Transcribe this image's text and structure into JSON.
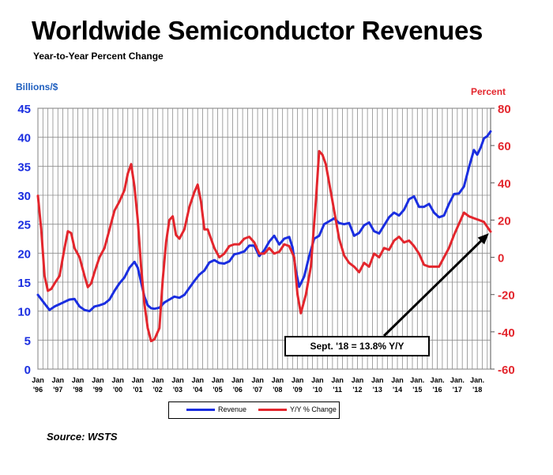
{
  "title": "Worldwide Semiconductor Revenues",
  "subtitle": "Year-to-Year Percent Change",
  "source": "Source: WSTS",
  "annotation": "Sept. '18 = 13.8% Y/Y",
  "colors": {
    "revenue": "#1a2ee0",
    "yy": "#e3262d",
    "left_axis": "#1a2ee0",
    "right_axis": "#e3262d",
    "grid": "#8c8c8c"
  },
  "chart_data": {
    "type": "line",
    "title": "Worldwide Semiconductor Revenues",
    "subtitle": "Year-to-Year Percent Change",
    "ylabel": "Billions/$",
    "ylabel_right": "Percent",
    "ylim": [
      0,
      45
    ],
    "ylim_right": [
      -60,
      80
    ],
    "yticks": [
      "0",
      "5",
      "10",
      "15",
      "20",
      "25",
      "30",
      "35",
      "40",
      "45"
    ],
    "yticks_right": [
      "-60",
      "-40",
      "-20",
      "0",
      "20",
      "40",
      "60",
      "80"
    ],
    "xlim": [
      "1996-01",
      "2018-09"
    ],
    "xticks": [
      {
        "top": "Jan",
        "bottom": "'96"
      },
      {
        "top": "Jan",
        "bottom": "'97"
      },
      {
        "top": "Jan",
        "bottom": "'98"
      },
      {
        "top": "Jan",
        "bottom": "'99"
      },
      {
        "top": "Jan",
        "bottom": "'00"
      },
      {
        "top": "Jan",
        "bottom": "'01"
      },
      {
        "top": "Jan",
        "bottom": "'02"
      },
      {
        "top": "Jan",
        "bottom": "'03"
      },
      {
        "top": "Jan",
        "bottom": "'04"
      },
      {
        "top": "Jan",
        "bottom": "'05"
      },
      {
        "top": "Jan",
        "bottom": "'06"
      },
      {
        "top": "Jan",
        "bottom": "'07"
      },
      {
        "top": "Jan",
        "bottom": "'08"
      },
      {
        "top": "Jan",
        "bottom": "'09"
      },
      {
        "top": "Jan",
        "bottom": "'10"
      },
      {
        "top": "Jan",
        "bottom": "'11"
      },
      {
        "top": "Jan",
        "bottom": "'12"
      },
      {
        "top": "Jan",
        "bottom": "'13"
      },
      {
        "top": "Jan",
        "bottom": "'14"
      },
      {
        "top": "Jan.",
        "bottom": "'15"
      },
      {
        "top": "Jan.",
        "bottom": "'16"
      },
      {
        "top": "Jan.",
        "bottom": "'17"
      },
      {
        "top": "Jan.",
        "bottom": "'18"
      }
    ],
    "grid": true,
    "legend_position": "bottom",
    "series": [
      {
        "name": "Revenue",
        "axis": "left",
        "points": [
          [
            "1996-01",
            12.8
          ],
          [
            "1996-05",
            11.3
          ],
          [
            "1996-08",
            10.2
          ],
          [
            "1996-11",
            10.8
          ],
          [
            "1997-02",
            11.2
          ],
          [
            "1997-05",
            11.6
          ],
          [
            "1997-08",
            12.0
          ],
          [
            "1997-11",
            12.1
          ],
          [
            "1998-02",
            10.8
          ],
          [
            "1998-05",
            10.2
          ],
          [
            "1998-08",
            10.0
          ],
          [
            "1998-11",
            10.8
          ],
          [
            "1999-02",
            11.0
          ],
          [
            "1999-05",
            11.3
          ],
          [
            "1999-08",
            12.0
          ],
          [
            "1999-11",
            13.5
          ],
          [
            "2000-02",
            14.8
          ],
          [
            "2000-05",
            15.8
          ],
          [
            "2000-08",
            17.5
          ],
          [
            "2000-11",
            18.5
          ],
          [
            "2001-01",
            17.5
          ],
          [
            "2001-03",
            15.0
          ],
          [
            "2001-05",
            12.5
          ],
          [
            "2001-07",
            11.0
          ],
          [
            "2001-09",
            10.5
          ],
          [
            "2001-11",
            10.4
          ],
          [
            "2002-02",
            10.6
          ],
          [
            "2002-05",
            11.5
          ],
          [
            "2002-08",
            12.0
          ],
          [
            "2002-11",
            12.5
          ],
          [
            "2003-02",
            12.3
          ],
          [
            "2003-05",
            12.8
          ],
          [
            "2003-08",
            14.0
          ],
          [
            "2003-11",
            15.2
          ],
          [
            "2004-02",
            16.3
          ],
          [
            "2004-05",
            17.0
          ],
          [
            "2004-08",
            18.4
          ],
          [
            "2004-11",
            18.8
          ],
          [
            "2005-02",
            18.3
          ],
          [
            "2005-05",
            18.2
          ],
          [
            "2005-08",
            18.6
          ],
          [
            "2005-11",
            19.8
          ],
          [
            "2006-02",
            20.0
          ],
          [
            "2006-05",
            20.3
          ],
          [
            "2006-08",
            21.3
          ],
          [
            "2006-11",
            21.3
          ],
          [
            "2007-02",
            19.5
          ],
          [
            "2007-05",
            20.5
          ],
          [
            "2007-08",
            22.0
          ],
          [
            "2007-11",
            23.0
          ],
          [
            "2008-02",
            21.5
          ],
          [
            "2008-05",
            22.5
          ],
          [
            "2008-08",
            22.8
          ],
          [
            "2008-10",
            21.0
          ],
          [
            "2008-12",
            17.0
          ],
          [
            "2009-02",
            14.2
          ],
          [
            "2009-05",
            16.0
          ],
          [
            "2009-08",
            19.5
          ],
          [
            "2009-11",
            22.5
          ],
          [
            "2010-02",
            23.0
          ],
          [
            "2010-05",
            25.0
          ],
          [
            "2010-08",
            25.5
          ],
          [
            "2010-11",
            26.0
          ],
          [
            "2011-02",
            25.2
          ],
          [
            "2011-05",
            25.0
          ],
          [
            "2011-08",
            25.2
          ],
          [
            "2011-11",
            23.0
          ],
          [
            "2012-02",
            23.5
          ],
          [
            "2012-05",
            24.8
          ],
          [
            "2012-08",
            25.3
          ],
          [
            "2012-11",
            23.8
          ],
          [
            "2013-02",
            23.4
          ],
          [
            "2013-05",
            24.8
          ],
          [
            "2013-08",
            26.2
          ],
          [
            "2013-11",
            27.0
          ],
          [
            "2014-02",
            26.5
          ],
          [
            "2014-05",
            27.5
          ],
          [
            "2014-08",
            29.3
          ],
          [
            "2014-11",
            29.8
          ],
          [
            "2015-02",
            28.0
          ],
          [
            "2015-05",
            28.0
          ],
          [
            "2015-08",
            28.5
          ],
          [
            "2015-11",
            27.0
          ],
          [
            "2016-02",
            26.2
          ],
          [
            "2016-05",
            26.5
          ],
          [
            "2016-08",
            28.5
          ],
          [
            "2016-11",
            30.2
          ],
          [
            "2017-02",
            30.3
          ],
          [
            "2017-05",
            31.5
          ],
          [
            "2017-08",
            34.8
          ],
          [
            "2017-11",
            37.8
          ],
          [
            "2018-01",
            37.0
          ],
          [
            "2018-03",
            38.2
          ],
          [
            "2018-05",
            39.8
          ],
          [
            "2018-07",
            40.2
          ],
          [
            "2018-09",
            41.0
          ]
        ]
      },
      {
        "name": "Y/Y % Change",
        "axis": "right",
        "points": [
          [
            "1996-01",
            33
          ],
          [
            "1996-03",
            15
          ],
          [
            "1996-05",
            -10
          ],
          [
            "1996-07",
            -18
          ],
          [
            "1996-09",
            -17
          ],
          [
            "1996-11",
            -14
          ],
          [
            "1997-02",
            -10
          ],
          [
            "1997-05",
            5
          ],
          [
            "1997-07",
            14
          ],
          [
            "1997-09",
            13
          ],
          [
            "1997-11",
            5
          ],
          [
            "1998-02",
            0
          ],
          [
            "1998-05",
            -10
          ],
          [
            "1998-07",
            -16
          ],
          [
            "1998-09",
            -14
          ],
          [
            "1998-11",
            -8
          ],
          [
            "1999-02",
            0
          ],
          [
            "1999-05",
            5
          ],
          [
            "1999-08",
            15
          ],
          [
            "1999-11",
            25
          ],
          [
            "2000-02",
            30
          ],
          [
            "2000-05",
            36
          ],
          [
            "2000-07",
            45
          ],
          [
            "2000-09",
            50
          ],
          [
            "2000-11",
            38
          ],
          [
            "2001-01",
            20
          ],
          [
            "2001-03",
            -5
          ],
          [
            "2001-05",
            -25
          ],
          [
            "2001-07",
            -38
          ],
          [
            "2001-09",
            -45
          ],
          [
            "2001-11",
            -44
          ],
          [
            "2002-02",
            -38
          ],
          [
            "2002-04",
            -12
          ],
          [
            "2002-06",
            8
          ],
          [
            "2002-08",
            20
          ],
          [
            "2002-10",
            22
          ],
          [
            "2002-12",
            12
          ],
          [
            "2003-02",
            10
          ],
          [
            "2003-05",
            15
          ],
          [
            "2003-08",
            27
          ],
          [
            "2003-11",
            35
          ],
          [
            "2004-01",
            39
          ],
          [
            "2004-03",
            30
          ],
          [
            "2004-05",
            15
          ],
          [
            "2004-07",
            15
          ],
          [
            "2004-09",
            10
          ],
          [
            "2004-11",
            5
          ],
          [
            "2005-02",
            0
          ],
          [
            "2005-05",
            2
          ],
          [
            "2005-08",
            6
          ],
          [
            "2005-11",
            7
          ],
          [
            "2006-02",
            7
          ],
          [
            "2006-05",
            10
          ],
          [
            "2006-08",
            11
          ],
          [
            "2006-11",
            8
          ],
          [
            "2007-02",
            2
          ],
          [
            "2007-05",
            2
          ],
          [
            "2007-08",
            5
          ],
          [
            "2007-11",
            2
          ],
          [
            "2008-02",
            3
          ],
          [
            "2008-05",
            7
          ],
          [
            "2008-08",
            6
          ],
          [
            "2008-11",
            0
          ],
          [
            "2009-01",
            -20
          ],
          [
            "2009-03",
            -30
          ],
          [
            "2009-06",
            -20
          ],
          [
            "2009-09",
            -5
          ],
          [
            "2009-12",
            30
          ],
          [
            "2010-02",
            57
          ],
          [
            "2010-04",
            55
          ],
          [
            "2010-06",
            50
          ],
          [
            "2010-09",
            35
          ],
          [
            "2010-11",
            25
          ],
          [
            "2011-02",
            10
          ],
          [
            "2011-05",
            1
          ],
          [
            "2011-08",
            -3
          ],
          [
            "2011-11",
            -5
          ],
          [
            "2012-02",
            -8
          ],
          [
            "2012-05",
            -3
          ],
          [
            "2012-08",
            -5
          ],
          [
            "2012-11",
            2
          ],
          [
            "2013-02",
            0
          ],
          [
            "2013-05",
            5
          ],
          [
            "2013-08",
            4
          ],
          [
            "2013-11",
            9
          ],
          [
            "2014-02",
            11
          ],
          [
            "2014-05",
            8
          ],
          [
            "2014-08",
            9
          ],
          [
            "2014-11",
            6
          ],
          [
            "2015-02",
            2
          ],
          [
            "2015-05",
            -4
          ],
          [
            "2015-08",
            -5
          ],
          [
            "2015-11",
            -5
          ],
          [
            "2016-02",
            -5
          ],
          [
            "2016-05",
            0
          ],
          [
            "2016-08",
            5
          ],
          [
            "2016-11",
            12
          ],
          [
            "2017-02",
            18
          ],
          [
            "2017-05",
            24
          ],
          [
            "2017-08",
            22
          ],
          [
            "2017-11",
            21
          ],
          [
            "2018-02",
            20
          ],
          [
            "2018-05",
            19
          ],
          [
            "2018-08",
            15
          ],
          [
            "2018-09",
            13.8
          ]
        ]
      }
    ],
    "annotations": [
      {
        "text": "Sept. '18 = 13.8% Y/Y",
        "x": "2018-09",
        "y": 13.8,
        "axis": "right"
      }
    ]
  }
}
